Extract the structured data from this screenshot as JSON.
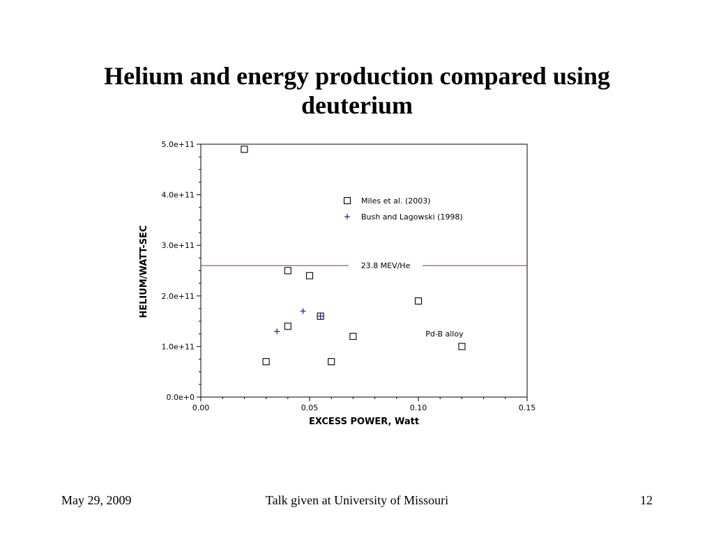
{
  "slide": {
    "title_line1": "Helium and energy production compared using",
    "title_line2": "deuterium",
    "footer_date": "May 29, 2009",
    "footer_center": "Talk given at University of Missouri",
    "page_number": "12"
  },
  "chart_data": {
    "type": "scatter",
    "xlabel": "EXCESS POWER, Watt",
    "ylabel": "HELIUM/WATT-SEC",
    "xlim": [
      0.0,
      0.15
    ],
    "ylim": [
      0,
      500000000000
    ],
    "x_ticks": [
      0.0,
      0.05,
      0.1,
      0.15
    ],
    "x_tick_labels": [
      "0.00",
      "0.05",
      "0.10",
      "0.15"
    ],
    "y_ticks": [
      0,
      100000000000,
      200000000000,
      300000000000,
      400000000000,
      500000000000
    ],
    "y_tick_labels": [
      "0.0e+0",
      "1.0e+11",
      "2.0e+11",
      "3.0e+11",
      "4.0e+11",
      "5.0e+11"
    ],
    "grid": false,
    "legend_position": "top-right",
    "series": [
      {
        "name": "Miles et al. (2003)",
        "marker": "square",
        "color": "#000000",
        "x": [
          0.02,
          0.03,
          0.04,
          0.04,
          0.05,
          0.055,
          0.06,
          0.07,
          0.1,
          0.12
        ],
        "y": [
          490000000000,
          70000000000,
          250000000000,
          140000000000,
          240000000000,
          160000000000,
          70000000000,
          120000000000,
          190000000000,
          100000000000
        ]
      },
      {
        "name": "Bush and Lagowski (1998)",
        "marker": "plus",
        "color": "#1a1aa0",
        "x": [
          0.035,
          0.047,
          0.055
        ],
        "y": [
          130000000000,
          170000000000,
          160000000000
        ]
      }
    ],
    "reference_line": {
      "y": 260000000000,
      "label": "23.8 MEV/He",
      "color": "#b22222"
    },
    "annotations": [
      {
        "text": "Pd-B alloy",
        "x": 0.112,
        "y": 120000000000
      }
    ]
  }
}
